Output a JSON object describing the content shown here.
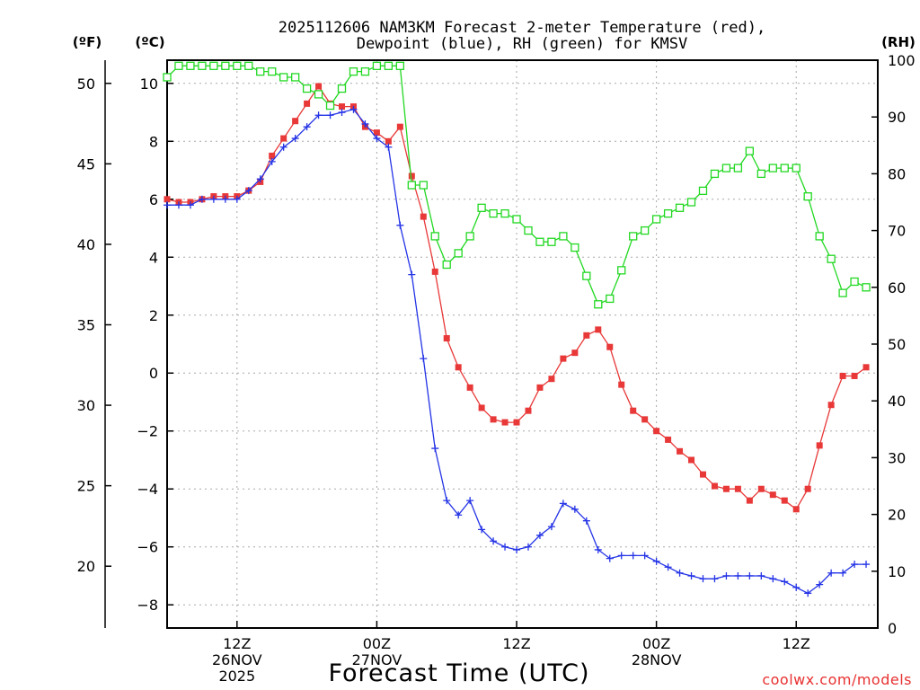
{
  "title_line1": "2025112606 NAM3KM Forecast 2-meter Temperature (red),",
  "title_line2": "Dewpoint (blue), RH (green) for KMSV",
  "unit_f": "(ºF)",
  "unit_c": "(ºC)",
  "unit_rh": "(RH)",
  "xlabel": "Forecast Time (UTC)",
  "credit": "coolwx.com/models",
  "colors": {
    "temp": "#e83838",
    "dew": "#2433e6",
    "rh": "#22d822",
    "grid": "#a8a8a8"
  },
  "chart_data": {
    "type": "line",
    "x_unit": "forecast hour",
    "x_range": [
      0,
      61
    ],
    "y_left_celsius": {
      "range": [
        -8.8,
        10.8
      ],
      "ticks": [
        10,
        8,
        6,
        4,
        2,
        0,
        -2,
        -4,
        -6,
        -8
      ],
      "tick_labels": [
        "10",
        "8",
        "6",
        "4",
        "2",
        "0",
        "−2",
        "−4",
        "−6",
        "−8"
      ]
    },
    "y_left_fahrenheit": {
      "ticks": [
        50,
        45,
        40,
        35,
        30,
        25,
        20
      ],
      "tick_labels": [
        "50",
        "45",
        "40",
        "35",
        "30",
        "25",
        "20"
      ]
    },
    "y_right_rh": {
      "range": [
        0,
        100
      ],
      "ticks": [
        100,
        90,
        80,
        70,
        60,
        50,
        40,
        30,
        20,
        10,
        0
      ],
      "tick_labels": [
        "100",
        "90",
        "80",
        "70",
        "60",
        "50",
        "40",
        "30",
        "20",
        "10",
        "0"
      ]
    },
    "x_ticks": [
      {
        "hour": 6,
        "lines": [
          "12Z",
          "26NOV",
          "2025"
        ]
      },
      {
        "hour": 18,
        "lines": [
          "00Z",
          "27NOV"
        ]
      },
      {
        "hour": 30,
        "lines": [
          "12Z"
        ]
      },
      {
        "hour": 42,
        "lines": [
          "00Z",
          "28NOV"
        ]
      },
      {
        "hour": 54,
        "lines": [
          "12Z"
        ]
      }
    ],
    "series": [
      {
        "name": "Temperature",
        "unit": "°C",
        "axis": "celsius",
        "marker": "filled-square",
        "x": [
          0,
          1,
          2,
          3,
          4,
          5,
          6,
          7,
          8,
          9,
          10,
          11,
          12,
          13,
          14,
          15,
          16,
          17,
          18,
          19,
          20,
          21,
          22,
          23,
          24,
          25,
          26,
          27,
          28,
          29,
          30,
          31,
          32,
          33,
          34,
          35,
          36,
          37,
          38,
          39,
          40,
          41,
          42,
          43,
          44,
          45,
          46,
          47,
          48,
          49,
          50,
          51,
          52,
          53,
          54,
          55,
          56,
          57,
          58,
          59,
          60
        ],
        "values": [
          6.0,
          5.9,
          5.9,
          6.0,
          6.1,
          6.1,
          6.1,
          6.3,
          6.6,
          7.5,
          8.1,
          8.7,
          9.3,
          9.9,
          9.3,
          9.2,
          9.2,
          8.5,
          8.3,
          8.0,
          8.5,
          6.8,
          5.4,
          3.5,
          1.2,
          0.2,
          -0.5,
          -1.2,
          -1.6,
          -1.7,
          -1.7,
          -1.3,
          -0.5,
          -0.2,
          0.5,
          0.7,
          1.3,
          1.5,
          0.9,
          -0.4,
          -1.3,
          -1.6,
          -2.0,
          -2.3,
          -2.7,
          -3.0,
          -3.5,
          -3.9,
          -4.0,
          -4.0,
          -4.4,
          -4.0,
          -4.2,
          -4.4,
          -4.7,
          -4.0,
          -2.5,
          -1.1,
          -0.1,
          -0.1,
          0.2
        ]
      },
      {
        "name": "Dewpoint",
        "unit": "°C",
        "axis": "celsius",
        "marker": "plus",
        "x": [
          0,
          1,
          2,
          3,
          4,
          5,
          6,
          7,
          8,
          9,
          10,
          11,
          12,
          13,
          14,
          15,
          16,
          17,
          18,
          19,
          20,
          21,
          22,
          23,
          24,
          25,
          26,
          27,
          28,
          29,
          30,
          31,
          32,
          33,
          34,
          35,
          36,
          37,
          38,
          39,
          40,
          41,
          42,
          43,
          44,
          45,
          46,
          47,
          48,
          49,
          50,
          51,
          52,
          53,
          54,
          55,
          56,
          57,
          58,
          59,
          60
        ],
        "values": [
          5.8,
          5.8,
          5.8,
          6.0,
          6.0,
          6.0,
          6.0,
          6.3,
          6.7,
          7.3,
          7.8,
          8.1,
          8.5,
          8.9,
          8.9,
          9.0,
          9.1,
          8.6,
          8.1,
          7.8,
          5.1,
          3.4,
          0.5,
          -2.6,
          -4.4,
          -4.9,
          -4.4,
          -5.4,
          -5.8,
          -6.0,
          -6.1,
          -6.0,
          -5.6,
          -5.3,
          -4.5,
          -4.7,
          -5.1,
          -6.1,
          -6.4,
          -6.3,
          -6.3,
          -6.3,
          -6.5,
          -6.7,
          -6.9,
          -7.0,
          -7.1,
          -7.1,
          -7.0,
          -7.0,
          -7.0,
          -7.0,
          -7.1,
          -7.2,
          -7.4,
          -7.6,
          -7.3,
          -6.9,
          -6.9,
          -6.6,
          -6.6
        ]
      },
      {
        "name": "Relative Humidity",
        "unit": "%",
        "axis": "rh",
        "marker": "open-square",
        "x": [
          0,
          1,
          2,
          3,
          4,
          5,
          6,
          7,
          8,
          9,
          10,
          11,
          12,
          13,
          14,
          15,
          16,
          17,
          18,
          19,
          20,
          21,
          22,
          23,
          24,
          25,
          26,
          27,
          28,
          29,
          30,
          31,
          32,
          33,
          34,
          35,
          36,
          37,
          38,
          39,
          40,
          41,
          42,
          43,
          44,
          45,
          46,
          47,
          48,
          49,
          50,
          51,
          52,
          53,
          54,
          55,
          56,
          57,
          58,
          59,
          60
        ],
        "values": [
          97,
          99,
          99,
          99,
          99,
          99,
          99,
          99,
          98,
          98,
          97,
          97,
          95,
          94,
          92,
          95,
          98,
          98,
          99,
          99,
          99,
          78,
          78,
          69,
          64,
          66,
          69,
          74,
          73,
          73,
          72,
          70,
          68,
          68,
          69,
          67,
          62,
          57,
          58,
          63,
          69,
          70,
          72,
          73,
          74,
          75,
          77,
          80,
          81,
          81,
          84,
          80,
          81,
          81,
          81,
          76,
          69,
          65,
          59,
          61,
          60
        ]
      }
    ]
  }
}
